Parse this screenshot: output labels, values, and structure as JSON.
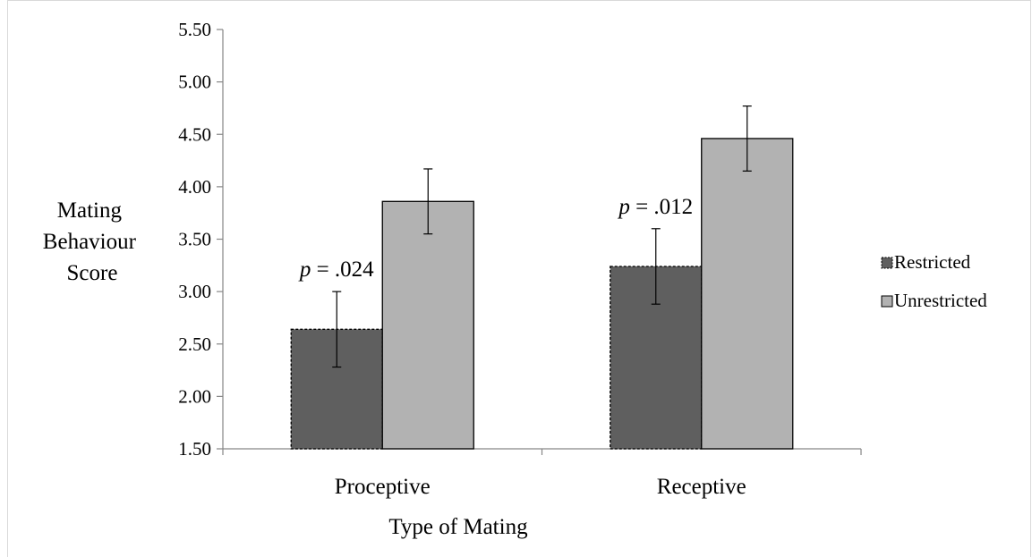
{
  "chart_data": {
    "type": "bar",
    "categories": [
      "Proceptive",
      "Receptive"
    ],
    "series": [
      {
        "name": "Restricted",
        "values": [
          2.64,
          3.24
        ],
        "errors": [
          0.36,
          0.36
        ],
        "color": "#5f5f5f",
        "border": "dashed"
      },
      {
        "name": "Unrestricted",
        "values": [
          3.86,
          4.46
        ],
        "errors": [
          0.31,
          0.31
        ],
        "color": "#b2b2b2",
        "border": "solid"
      }
    ],
    "xlabel": "Type of Mating",
    "ylabel": [
      "Mating",
      "Behaviour",
      "Score"
    ],
    "ylim": [
      1.5,
      5.5
    ],
    "yticks": [
      "1.50",
      "2.00",
      "2.50",
      "3.00",
      "3.50",
      "4.00",
      "4.50",
      "5.00",
      "5.50"
    ],
    "grid": false,
    "legend_position": "right",
    "annotations": [
      {
        "category": "Proceptive",
        "italic": "p",
        "text": " = .024"
      },
      {
        "category": "Receptive",
        "italic": "p",
        "text": " = .012"
      }
    ]
  }
}
